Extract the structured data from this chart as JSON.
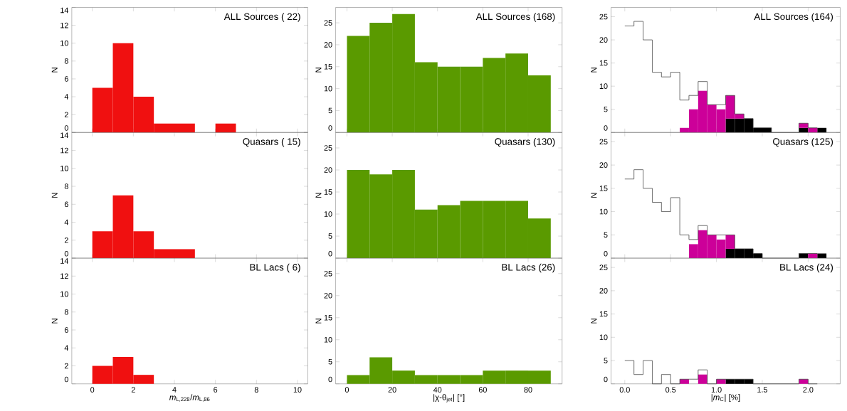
{
  "chart_data": [
    {
      "type": "histogram",
      "annotations": [
        "ALL Sources ( 22)"
      ],
      "ylabel": "N",
      "bins": [
        0,
        1,
        2,
        3,
        4,
        5,
        6,
        7
      ],
      "values": [
        5,
        10,
        4,
        1,
        1,
        0,
        1
      ],
      "color": "#f01010",
      "xlim": [
        -1,
        10.5
      ],
      "ylim": [
        0,
        14
      ],
      "xticks": [
        0,
        2,
        4,
        6,
        8,
        10
      ],
      "yticks": [
        0,
        2,
        4,
        6,
        8,
        10,
        12,
        14
      ],
      "tick_labels": "y"
    },
    {
      "type": "histogram",
      "annotations": [
        "ALL Sources (168)"
      ],
      "ylabel": "N",
      "bins": [
        0,
        10,
        20,
        30,
        40,
        50,
        60,
        70,
        80,
        90
      ],
      "values": [
        22,
        25,
        27,
        16,
        15,
        15,
        17,
        18,
        13
      ],
      "color": "#5a9a00",
      "xlim": [
        -5,
        95
      ],
      "ylim": [
        0,
        28.5
      ],
      "xticks": [
        0,
        20,
        40,
        60,
        80
      ],
      "yticks": [
        0,
        5,
        10,
        15,
        20,
        25
      ],
      "tick_labels": "y"
    },
    {
      "type": "bar",
      "annotations": [
        "ALL Sources (164)"
      ],
      "ylabel": "N",
      "stacked": true,
      "series": [
        {
          "color": "#000000",
          "x": [
            0.05,
            0.15,
            0.25,
            0.35,
            0.45,
            0.55,
            0.65,
            0.75,
            0.85,
            0.95,
            1.05,
            1.15,
            1.25,
            1.35,
            1.45,
            1.55,
            1.65,
            1.75,
            1.85,
            1.95,
            2.05,
            2.15
          ],
          "values": [
            0,
            0,
            0,
            0,
            0,
            0,
            0,
            0,
            0,
            0,
            0,
            3,
            3,
            3,
            1,
            1,
            0,
            0,
            0,
            1,
            0,
            1
          ]
        },
        {
          "color": "#cc0099",
          "x": [
            0.05,
            0.15,
            0.25,
            0.35,
            0.45,
            0.55,
            0.65,
            0.75,
            0.85,
            0.95,
            1.05,
            1.15,
            1.25,
            1.35,
            1.45,
            1.55,
            1.65,
            1.75,
            1.85,
            1.95,
            2.05,
            2.15
          ],
          "values": [
            0,
            0,
            0,
            0,
            0,
            0,
            1,
            5,
            9,
            6,
            5,
            5,
            1,
            0,
            0,
            0,
            0,
            0,
            0,
            1,
            1,
            0
          ]
        },
        {
          "type": "step",
          "color": "#404040",
          "x": [
            0,
            0.1,
            0.2,
            0.3,
            0.4,
            0.5,
            0.6,
            0.7,
            0.8,
            0.9,
            1.0,
            1.1,
            1.2,
            1.3,
            1.4,
            1.5,
            1.6,
            1.7,
            1.8,
            1.9,
            2.0,
            2.1
          ],
          "values": [
            23,
            24,
            20,
            13,
            12,
            13,
            7,
            8,
            11,
            6,
            6,
            8,
            4,
            3,
            1,
            1,
            0,
            0,
            0,
            2,
            1,
            1
          ]
        }
      ],
      "xlim": [
        -0.15,
        2.35
      ],
      "ylim": [
        0,
        27
      ],
      "xticks": [
        {
          "value": 0,
          "label": null
        },
        {
          "value": 0.5,
          "label": null
        },
        {
          "value": 1,
          "label": null
        },
        {
          "value": 1.5,
          "label": null
        },
        {
          "value": 2,
          "label": null
        }
      ],
      "yticks": [
        0,
        5,
        10,
        15,
        20,
        25
      ],
      "tick_labels": "y"
    },
    {
      "type": "histogram",
      "annotations": [
        "Quasars ( 15)"
      ],
      "ylabel": "N",
      "bins": [
        0,
        1,
        2,
        3,
        4,
        5
      ],
      "values": [
        3,
        7,
        3,
        1,
        1
      ],
      "color": "#f01010",
      "xlim": [
        -1,
        10.5
      ],
      "ylim": [
        0,
        14
      ],
      "xticks": [
        0,
        2,
        4,
        6,
        8,
        10
      ],
      "yticks": [
        0,
        2,
        4,
        6,
        8,
        10,
        12,
        14
      ],
      "tick_labels": "y"
    },
    {
      "type": "histogram",
      "annotations": [
        "Quasars (130)"
      ],
      "ylabel": "N",
      "bins": [
        0,
        10,
        20,
        30,
        40,
        50,
        60,
        70,
        80,
        90
      ],
      "values": [
        20,
        19,
        20,
        11,
        12,
        13,
        13,
        13,
        9
      ],
      "color": "#5a9a00",
      "xlim": [
        -5,
        95
      ],
      "ylim": [
        0,
        28.5
      ],
      "xticks": [
        0,
        20,
        40,
        60,
        80
      ],
      "yticks": [
        0,
        5,
        10,
        15,
        20,
        25
      ],
      "tick_labels": "y"
    },
    {
      "type": "bar",
      "annotations": [
        "Quasars (125)"
      ],
      "ylabel": "N",
      "stacked": true,
      "series": [
        {
          "color": "#000000",
          "x": [
            0.05,
            0.15,
            0.25,
            0.35,
            0.45,
            0.55,
            0.65,
            0.75,
            0.85,
            0.95,
            1.05,
            1.15,
            1.25,
            1.35,
            1.45,
            1.55,
            1.65,
            1.75,
            1.85,
            1.95,
            2.05,
            2.15
          ],
          "values": [
            0,
            0,
            0,
            0,
            0,
            0,
            0,
            0,
            0,
            0,
            0,
            2,
            2,
            2,
            1,
            0,
            0,
            0,
            0,
            1,
            0,
            1
          ]
        },
        {
          "color": "#cc0099",
          "x": [
            0.05,
            0.15,
            0.25,
            0.35,
            0.45,
            0.55,
            0.65,
            0.75,
            0.85,
            0.95,
            1.05,
            1.15,
            1.25,
            1.35,
            1.45,
            1.55,
            1.65,
            1.75,
            1.85,
            1.95,
            2.05,
            2.15
          ],
          "values": [
            0,
            0,
            0,
            0,
            0,
            0,
            0,
            3,
            6,
            5,
            4,
            3,
            0,
            0,
            0,
            0,
            0,
            0,
            0,
            0,
            1,
            0
          ]
        },
        {
          "type": "step",
          "color": "#404040",
          "x": [
            0,
            0.1,
            0.2,
            0.3,
            0.4,
            0.5,
            0.6,
            0.7,
            0.8,
            0.9,
            1.0,
            1.1,
            1.2,
            1.3,
            1.4,
            1.5,
            1.6,
            1.7,
            1.8,
            1.9,
            2.0,
            2.1
          ],
          "values": [
            17,
            19,
            15,
            12,
            10,
            13,
            5,
            4,
            7,
            5,
            5,
            5,
            2,
            2,
            1,
            0,
            0,
            0,
            0,
            1,
            1,
            1
          ]
        }
      ],
      "xlim": [
        -0.15,
        2.35
      ],
      "ylim": [
        0,
        27
      ],
      "xticks": [
        {
          "value": 0,
          "label": null
        },
        {
          "value": 0.5,
          "label": null
        },
        {
          "value": 1,
          "label": null
        },
        {
          "value": 1.5,
          "label": null
        },
        {
          "value": 2,
          "label": null
        }
      ],
      "yticks": [
        0,
        5,
        10,
        15,
        20,
        25
      ],
      "tick_labels": "y"
    },
    {
      "type": "histogram",
      "annotations": [
        "BL Lacs ( 6)"
      ],
      "xlabel": "*m*$_{L,228}$/*m*$_{L,86}$",
      "ylabel": "N",
      "bins": [
        0,
        1,
        2,
        3
      ],
      "values": [
        2,
        3,
        1
      ],
      "color": "#f01010",
      "xlim": [
        -1,
        10.5
      ],
      "ylim": [
        0,
        14
      ],
      "xticks": [
        0,
        2,
        4,
        6,
        8,
        10
      ],
      "yticks": [
        0,
        2,
        4,
        6,
        8,
        10,
        12,
        14
      ]
    },
    {
      "type": "histogram",
      "annotations": [
        "BL Lacs (26)"
      ],
      "xlabel": "|χ-θ$_{jet}$| [°]",
      "ylabel": "N",
      "bins": [
        0,
        10,
        20,
        30,
        40,
        50,
        60,
        70,
        80,
        90
      ],
      "values": [
        2,
        6,
        3,
        2,
        2,
        2,
        3,
        3,
        3
      ],
      "color": "#5a9a00",
      "xlim": [
        -5,
        95
      ],
      "ylim": [
        0,
        28.5
      ],
      "xticks": [
        0,
        20,
        40,
        60,
        80
      ],
      "yticks": [
        0,
        5,
        10,
        15,
        20,
        25
      ]
    },
    {
      "type": "bar",
      "annotations": [
        "BL Lacs (24)"
      ],
      "xlabel": "|*m*$_{C}$| [%]",
      "ylabel": "N",
      "stacked": true,
      "series": [
        {
          "color": "#000000",
          "x": [
            0.05,
            0.15,
            0.25,
            0.35,
            0.45,
            0.55,
            0.65,
            0.75,
            0.85,
            0.95,
            1.05,
            1.15,
            1.25,
            1.35,
            1.45,
            1.55,
            1.65,
            1.75,
            1.85,
            1.95,
            2.05,
            2.15
          ],
          "values": [
            0,
            0,
            0,
            0,
            0,
            0,
            0,
            0,
            0,
            0,
            0,
            1,
            1,
            1,
            0,
            0,
            0,
            0,
            0,
            0,
            0,
            0
          ]
        },
        {
          "color": "#cc0099",
          "x": [
            0.05,
            0.15,
            0.25,
            0.35,
            0.45,
            0.55,
            0.65,
            0.75,
            0.85,
            0.95,
            1.05,
            1.15,
            1.25,
            1.35,
            1.45,
            1.55,
            1.65,
            1.75,
            1.85,
            1.95,
            2.05,
            2.15
          ],
          "values": [
            0,
            0,
            0,
            0,
            0,
            0,
            1,
            0,
            2,
            0,
            1,
            0,
            0,
            0,
            0,
            0,
            0,
            0,
            0,
            1,
            0,
            0
          ]
        },
        {
          "type": "step",
          "color": "#404040",
          "x": [
            0,
            0.1,
            0.2,
            0.3,
            0.4,
            0.5,
            0.6,
            0.7,
            0.8,
            0.9,
            1.0,
            1.1,
            1.2,
            1.3,
            1.4,
            1.5,
            1.6,
            1.7,
            1.8,
            1.9,
            2.0,
            2.1
          ],
          "values": [
            5,
            2,
            5,
            0,
            2,
            0,
            1,
            1,
            3,
            0,
            1,
            1,
            1,
            1,
            0,
            0,
            0,
            0,
            0,
            1,
            0,
            0
          ]
        }
      ],
      "xlim": [
        -0.15,
        2.35
      ],
      "ylim": [
        0,
        27
      ],
      "xticks": [
        {
          "value": 0,
          "label": "0.0"
        },
        {
          "value": 0.5,
          "label": "0.5"
        },
        {
          "value": 1,
          "label": "1.0"
        },
        {
          "value": 1.5,
          "label": "1.5"
        },
        {
          "value": 2,
          "label": "2.0"
        }
      ],
      "yticks": [
        0,
        5,
        10,
        15,
        20,
        25
      ]
    }
  ]
}
